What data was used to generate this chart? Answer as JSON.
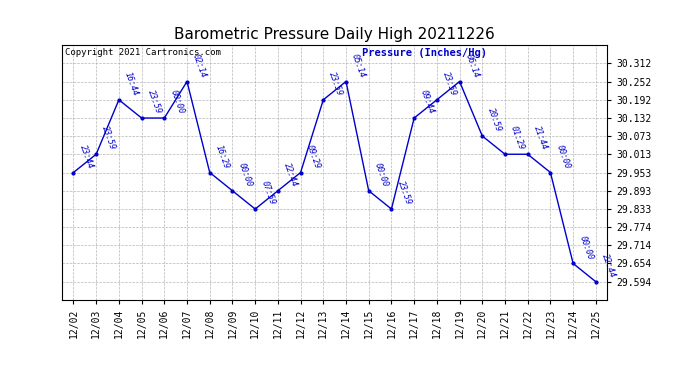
{
  "title": "Barometric Pressure Daily High 20211226",
  "copyright": "Copyright 2021 Cartronics.com",
  "ylabel": "Pressure (Inches/Hg)",
  "background_color": "#ffffff",
  "line_color": "#0000cc",
  "grid_color": "#aaaaaa",
  "dates": [
    "12/02",
    "12/03",
    "12/04",
    "12/05",
    "12/06",
    "12/07",
    "12/08",
    "12/09",
    "12/10",
    "12/11",
    "12/12",
    "12/13",
    "12/14",
    "12/15",
    "12/16",
    "12/17",
    "12/18",
    "12/19",
    "12/20",
    "12/21",
    "12/22",
    "12/23",
    "12/24",
    "12/25"
  ],
  "values": [
    29.953,
    30.013,
    30.192,
    30.132,
    30.132,
    30.252,
    29.953,
    29.893,
    29.833,
    29.893,
    29.953,
    30.192,
    30.252,
    29.893,
    29.833,
    30.132,
    30.192,
    30.252,
    30.073,
    30.013,
    30.013,
    29.953,
    29.654,
    29.594
  ],
  "annotations": [
    "23:44",
    "23:59",
    "16:44",
    "23:59",
    "00:00",
    "02:14",
    "16:29",
    "00:00",
    "07:59",
    "22:44",
    "09:29",
    "23:59",
    "05:14",
    "00:00",
    "23:59",
    "09:44",
    "23:59",
    "06:14",
    "20:59",
    "01:29",
    "21:44",
    "00:00",
    "00:00",
    "22:44"
  ],
  "ylim_min": 29.534,
  "ylim_max": 30.372,
  "yticks": [
    29.594,
    29.654,
    29.714,
    29.774,
    29.833,
    29.893,
    29.953,
    30.013,
    30.073,
    30.132,
    30.192,
    30.252,
    30.312
  ],
  "title_fontsize": 11,
  "label_fontsize": 7,
  "annot_fontsize": 6,
  "copyright_fontsize": 6.5,
  "ylabel_fontsize": 7.5
}
